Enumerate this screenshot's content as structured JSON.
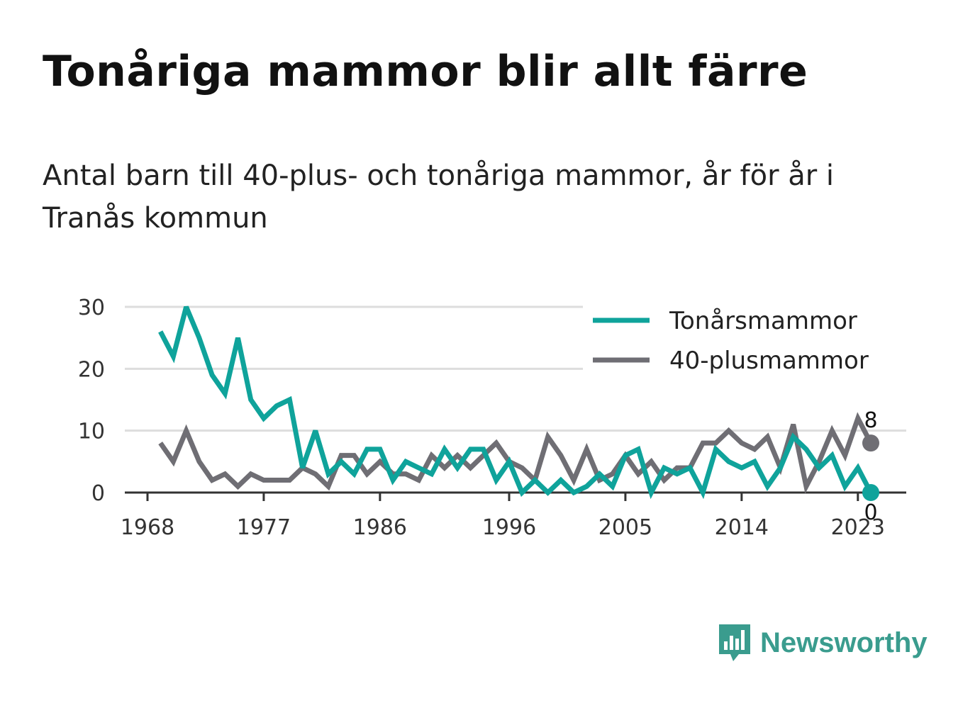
{
  "title": "Tonåriga mammor blir allt färre",
  "subtitle": "Antal barn till 40-plus- och tonåriga mammor, år för år i Tranås kommun",
  "brand": {
    "name": "Newsworthy",
    "icon": "bar-chart-speech-bubble-icon",
    "color": "#3a9c8e"
  },
  "chart_data": {
    "type": "line",
    "xlabel": "",
    "ylabel": "",
    "xlim": [
      1968,
      2024
    ],
    "ylim": [
      0,
      30
    ],
    "grid": true,
    "legend_position": "top-right",
    "x_ticks": [
      1968,
      1977,
      1986,
      1996,
      2005,
      2014,
      2023
    ],
    "y_ticks": [
      0,
      10,
      20,
      30
    ],
    "x": [
      1969,
      1970,
      1971,
      1972,
      1973,
      1974,
      1975,
      1976,
      1977,
      1978,
      1979,
      1980,
      1981,
      1982,
      1983,
      1984,
      1985,
      1986,
      1987,
      1988,
      1989,
      1990,
      1991,
      1992,
      1993,
      1994,
      1995,
      1996,
      1997,
      1998,
      1999,
      2000,
      2001,
      2002,
      2003,
      2004,
      2005,
      2006,
      2007,
      2008,
      2009,
      2010,
      2011,
      2012,
      2013,
      2014,
      2015,
      2016,
      2017,
      2018,
      2019,
      2020,
      2021,
      2022,
      2023,
      2024
    ],
    "series": [
      {
        "name": "Tonårsmammor",
        "color": "#0fa39b",
        "values": [
          26,
          22,
          30,
          25,
          19,
          16,
          25,
          15,
          12,
          14,
          15,
          4,
          10,
          3,
          5,
          3,
          7,
          7,
          2,
          5,
          4,
          3,
          7,
          4,
          7,
          7,
          2,
          5,
          0,
          2,
          0,
          2,
          0,
          1,
          3,
          1,
          6,
          7,
          0,
          4,
          3,
          4,
          0,
          7,
          5,
          4,
          5,
          1,
          4,
          9,
          7,
          4,
          6,
          1,
          4,
          0
        ],
        "end_label": "0"
      },
      {
        "name": "40-plusmammor",
        "color": "#6f6e74",
        "values": [
          8,
          5,
          10,
          5,
          2,
          3,
          1,
          3,
          2,
          2,
          2,
          4,
          3,
          1,
          6,
          6,
          3,
          5,
          3,
          3,
          2,
          6,
          4,
          6,
          4,
          6,
          8,
          5,
          4,
          2,
          9,
          6,
          2,
          7,
          2,
          3,
          6,
          3,
          5,
          2,
          4,
          4,
          8,
          8,
          10,
          8,
          7,
          9,
          4,
          11,
          1,
          5,
          10,
          6,
          12,
          8
        ],
        "end_label": "8"
      }
    ]
  }
}
